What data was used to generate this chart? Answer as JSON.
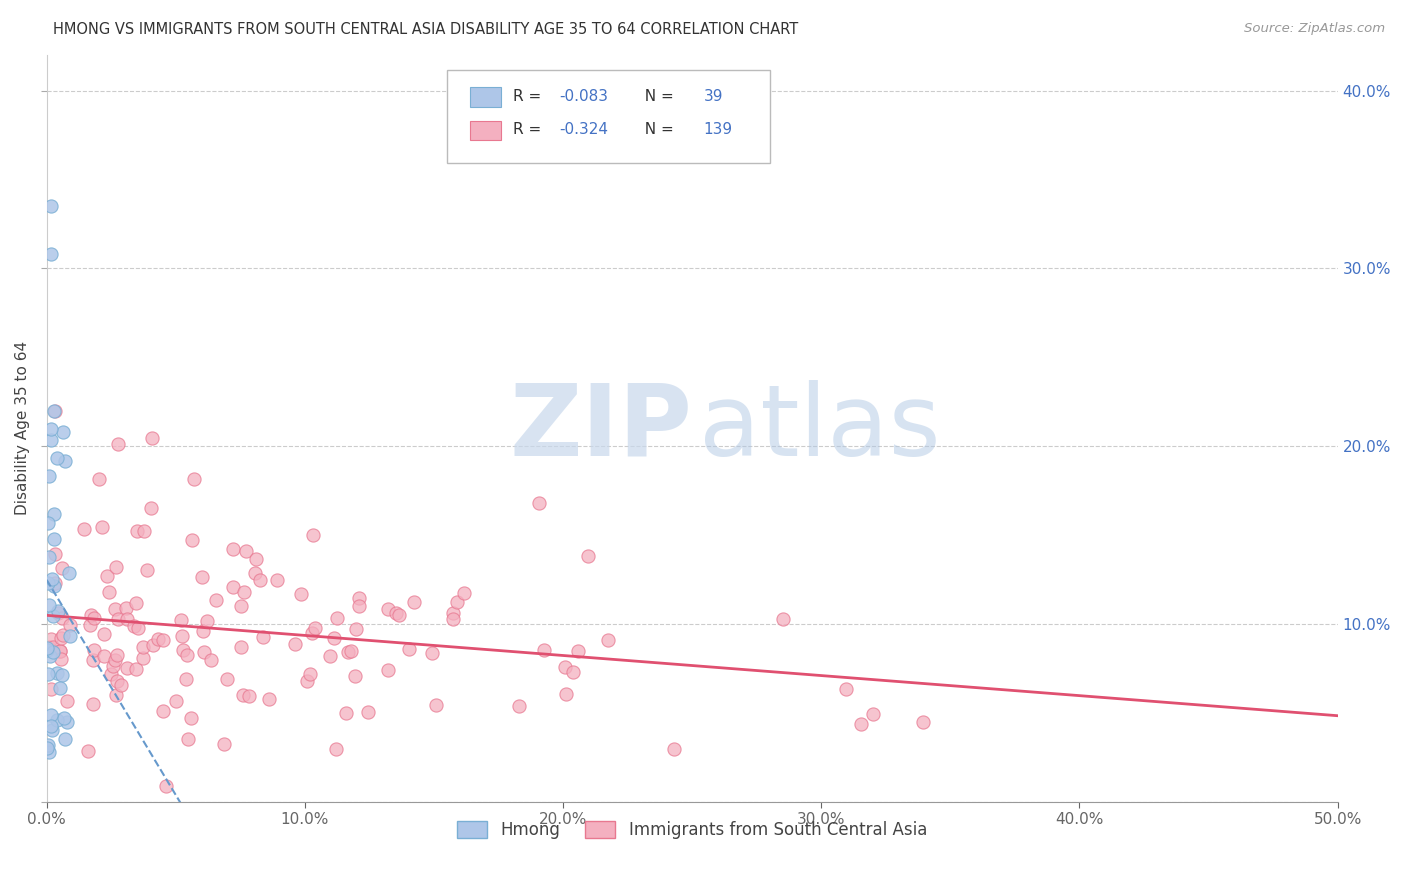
{
  "title": "HMONG VS IMMIGRANTS FROM SOUTH CENTRAL ASIA DISABILITY AGE 35 TO 64 CORRELATION CHART",
  "source": "Source: ZipAtlas.com",
  "ylabel": "Disability Age 35 to 64",
  "xlim": [
    0.0,
    0.5
  ],
  "ylim": [
    0.0,
    0.42
  ],
  "hmong_color": "#aec6e8",
  "hmong_edge": "#7aafd4",
  "pink_color": "#f4b0c0",
  "pink_edge": "#e87890",
  "trendline_hmong_color": "#6699cc",
  "trendline_pink_color": "#e05070",
  "grid_color": "#cccccc",
  "title_color": "#333333",
  "ylabel_color": "#444444",
  "tick_color": "#4472c4",
  "legend_R_color": "#333333",
  "legend_N_color": "#4472c4",
  "legend_val_color": "#4472c4",
  "legend_R_hmong": "-0.083",
  "legend_N_hmong": "39",
  "legend_R_pink": "-0.324",
  "legend_N_pink": "139",
  "watermark_zip_color": "#c8d8ec",
  "watermark_atlas_color": "#b0c8e4",
  "hmong_seed": 77,
  "pink_seed": 55
}
